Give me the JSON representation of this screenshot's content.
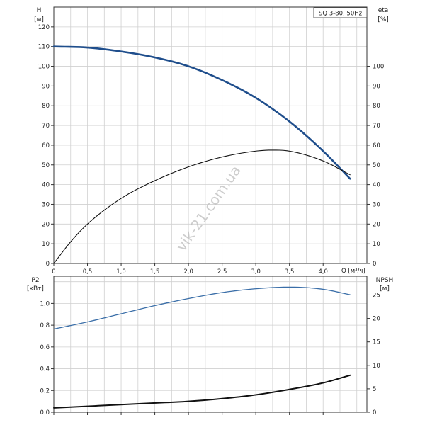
{
  "colors": {
    "grid": "#d0d0d0",
    "axis": "#333333",
    "head": "#1f4e8c",
    "efficiency": "#111111",
    "power": "#3a6ea8",
    "npsh": "#111111",
    "watermark": "#b8b8b8"
  },
  "model_label": "SQ 3-80, 50Hz",
  "watermark": "vik-21.com.ua",
  "chart_data": [
    {
      "type": "line",
      "title": "",
      "xlabel": "Q [м³/ч]",
      "x_ticks": [
        "0",
        "0,5",
        "1,0",
        "1,5",
        "2,0",
        "2,5",
        "3,0",
        "3,5",
        "4,0"
      ],
      "xlim": [
        0,
        4.65
      ],
      "left_axis": {
        "label_top": "H",
        "label_unit": "[м]",
        "ticks": [
          "0",
          "10",
          "20",
          "30",
          "40",
          "50",
          "60",
          "70",
          "80",
          "90",
          "100",
          "110",
          "120"
        ],
        "ylim": [
          0,
          130
        ]
      },
      "right_axis": {
        "label_top": "eta",
        "label_unit": "[%]",
        "ticks": [
          "0",
          "10",
          "20",
          "30",
          "40",
          "50",
          "60",
          "70",
          "80",
          "90",
          "100"
        ],
        "ylim": [
          0,
          130
        ]
      },
      "grid": true,
      "series": [
        {
          "axis": "left",
          "x": [
            0,
            0.5,
            1.0,
            1.5,
            2.0,
            2.5,
            3.0,
            3.5,
            4.0,
            4.4
          ],
          "y": [
            110,
            109.5,
            107.5,
            104.5,
            100,
            93,
            84,
            72,
            57,
            43
          ]
        },
        {
          "axis": "right",
          "x": [
            0,
            0.25,
            0.5,
            1.0,
            1.5,
            2.0,
            2.5,
            3.0,
            3.25,
            3.5,
            4.0,
            4.4
          ],
          "y": [
            0,
            11,
            20,
            33,
            42,
            49,
            54,
            57,
            57.5,
            57,
            52,
            45
          ]
        }
      ]
    },
    {
      "type": "line",
      "title": "",
      "xlabel": "",
      "xlim": [
        0,
        4.65
      ],
      "left_axis": {
        "label_top": "P2",
        "label_unit": "[кВт]",
        "ticks": [
          "0.0",
          "0.2",
          "0.4",
          "0.6",
          "0.8",
          "1.0"
        ],
        "ylim": [
          0,
          1.25
        ]
      },
      "right_axis": {
        "label_top": "NPSH",
        "label_unit": "[м]",
        "ticks": [
          "0",
          "5",
          "10",
          "15",
          "20",
          "25"
        ],
        "ylim": [
          0,
          29
        ]
      },
      "grid": true,
      "series": [
        {
          "axis": "left",
          "x": [
            0,
            0.5,
            1.0,
            1.5,
            2.0,
            2.5,
            3.0,
            3.5,
            4.0,
            4.4
          ],
          "y": [
            0.765,
            0.83,
            0.905,
            0.98,
            1.045,
            1.1,
            1.135,
            1.15,
            1.13,
            1.08
          ]
        },
        {
          "axis": "left",
          "x": [
            0,
            0.5,
            1.0,
            1.5,
            2.0,
            2.5,
            3.0,
            3.5,
            4.0,
            4.4
          ],
          "y": [
            0.04,
            0.055,
            0.07,
            0.085,
            0.1,
            0.125,
            0.16,
            0.21,
            0.27,
            0.34
          ]
        }
      ]
    }
  ]
}
